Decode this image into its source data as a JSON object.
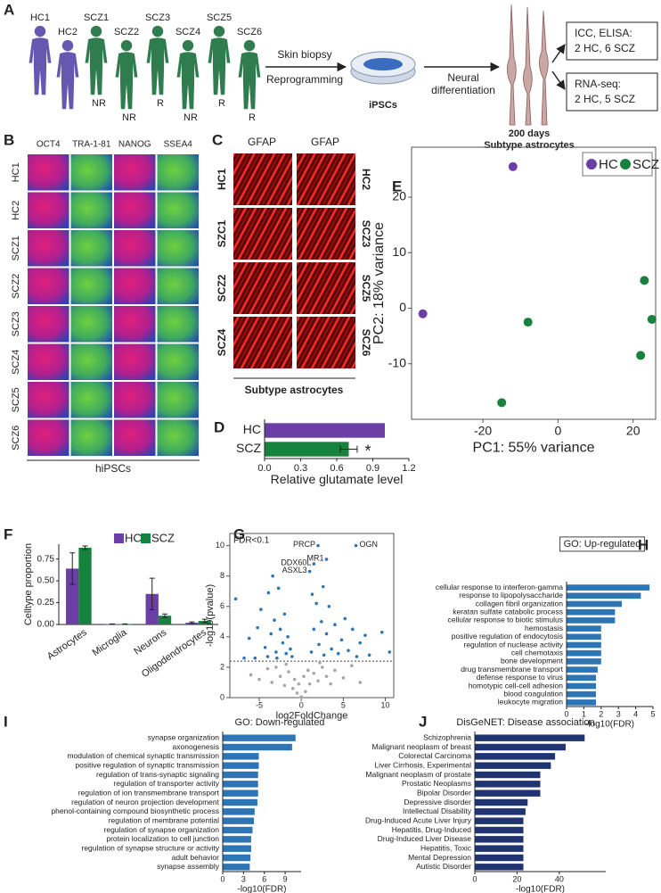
{
  "panel_labels": [
    "A",
    "B",
    "C",
    "D",
    "E",
    "F",
    "G",
    "H",
    "I",
    "J"
  ],
  "diagram": {
    "donors": [
      {
        "label": "HC1",
        "color": "#6b5bb5"
      },
      {
        "label": "HC2",
        "color": "#6b5bb5"
      },
      {
        "label": "SCZ1",
        "color": "#2f7d4f",
        "response": "NR"
      },
      {
        "label": "SCZ2",
        "color": "#2f7d4f",
        "response": "NR"
      },
      {
        "label": "SCZ3",
        "color": "#2f7d4f",
        "response": "R"
      },
      {
        "label": "SCZ4",
        "color": "#2f7d4f",
        "response": "NR"
      },
      {
        "label": "SCZ5",
        "color": "#2f7d4f",
        "response": "R"
      },
      {
        "label": "SCZ6",
        "color": "#2f7d4f",
        "response": "R"
      }
    ],
    "step1_top": "Skin biopsy",
    "step1_bottom": "Reprogramming",
    "dish": "iPSCs",
    "step2": [
      "Neural",
      "differentiation"
    ],
    "result": [
      "200 days",
      "Subtype astrocytes"
    ],
    "boxes": [
      [
        "ICC, ELISA:",
        "2 HC, 6 SCZ"
      ],
      [
        "RNA-seq:",
        "2 HC, 5 SCZ"
      ]
    ]
  },
  "hipsc_panel": {
    "markers": [
      {
        "text": "OCT4",
        "color": "#c0308f"
      },
      {
        "text": "TRA-1-81",
        "color": "#2f7a2f"
      },
      {
        "text": "NANOG",
        "color": "#c0308f"
      },
      {
        "text": "SSEA4",
        "color": "#2f7a2f"
      }
    ],
    "rows": [
      "HC1",
      "HC2",
      "SCZ1",
      "SCZ2",
      "SCZ3",
      "SCZ4",
      "SCZ5",
      "SCZ6"
    ],
    "caption": "hiPSCs"
  },
  "astro_panel": {
    "headers": [
      "GFAP",
      "GFAP"
    ],
    "left_rows": [
      "HC1",
      "SZC1",
      "SCZ2",
      "SCZ4"
    ],
    "right_rows": [
      "HC2",
      "SCZ3",
      "SCZ5",
      "SCZ6"
    ],
    "caption": "Subtype astrocytes"
  },
  "chart_data": [
    {
      "type": "hbar",
      "categories": [
        "HC",
        "SCZ"
      ],
      "values": [
        1.0,
        0.7
      ],
      "errors": [
        null,
        0.07
      ],
      "colors": [
        "#6b3fa6",
        "#17823e"
      ],
      "xlim": [
        0,
        1.2
      ],
      "xticks": [
        {
          "value": 0,
          "label": "0.0"
        },
        0.3,
        0.6,
        0.9,
        1.2
      ],
      "xlabel": "Relative glutamate level",
      "significance": "*"
    },
    {
      "type": "scatter",
      "series": [
        {
          "name": "HC",
          "color": "#6b3fa6",
          "x": [
            -12,
            -36
          ],
          "y": [
            25.5,
            -1
          ]
        },
        {
          "name": "SCZ",
          "color": "#17823e",
          "x": [
            -8,
            -15,
            23,
            25,
            22
          ],
          "y": [
            -2.5,
            -17,
            5,
            -2,
            -8.5
          ]
        }
      ],
      "xlim": [
        -39,
        26
      ],
      "ylim": [
        -20,
        29
      ],
      "xticks": [
        -20,
        0,
        20
      ],
      "yticks": [
        -10,
        0,
        10,
        20
      ],
      "xlabel": "PC1: 55% variance",
      "ylabel": "PC2: 18% variance",
      "legend": "top-right"
    },
    {
      "type": "bar",
      "categories": [
        "Astrocytes",
        "Microglia",
        "Neurons",
        "Oligodendrocytes"
      ],
      "series": [
        {
          "name": "HC",
          "color": "#6b3fa6",
          "values": [
            0.64,
            0.005,
            0.35,
            0.02
          ],
          "errors": [
            0.18,
            0.002,
            0.18,
            0.01
          ]
        },
        {
          "name": "SCZ",
          "color": "#17823e",
          "values": [
            0.88,
            0.005,
            0.1,
            0.04
          ],
          "errors": [
            0.02,
            0.002,
            0.02,
            0.02
          ]
        }
      ],
      "ylim": [
        0,
        0.92
      ],
      "yticks": [
        {
          "value": 0,
          "label": "0.00"
        },
        0.25,
        {
          "value": 0.5,
          "label": "0.50"
        },
        0.75
      ],
      "ylabel": "Celltype proportion",
      "legend": "top"
    },
    {
      "type": "scatter",
      "series": [
        {
          "color": "#2e75b6",
          "x": [
            -7.8,
            -6.2,
            -5.2,
            -4.8,
            -4.3,
            -3.9,
            -3.6,
            -3.2,
            -3.0,
            -2.7,
            -2.5,
            -2.2,
            -2.0,
            -1.8,
            -1.6,
            -1.3,
            -1.1,
            -2.9,
            -4.0,
            -5.5,
            -6.8,
            -3.4,
            1.2,
            1.5,
            1.8,
            2.1,
            2.4,
            2.7,
            3.0,
            3.3,
            3.6,
            4.0,
            4.4,
            4.8,
            5.2,
            5.6,
            6.1,
            6.6,
            7.0,
            7.6,
            8.1,
            10.5,
            9.6,
            2.6,
            1.3
          ],
          "y": [
            6.5,
            3.9,
            4.6,
            5.8,
            3.3,
            6.9,
            4.2,
            5.1,
            3.0,
            7.2,
            4.5,
            3.6,
            5.5,
            2.9,
            4.0,
            3.2,
            2.7,
            2.6,
            2.7,
            2.6,
            2.6,
            8.0,
            3.0,
            4.5,
            6.2,
            3.5,
            5.0,
            2.8,
            4.2,
            6.0,
            3.2,
            4.8,
            2.9,
            3.8,
            5.2,
            3.1,
            4.5,
            2.7,
            3.6,
            4.1,
            2.8,
            3.0,
            4.3,
            7.3,
            6.8
          ]
        },
        {
          "color": "#a6a6a6",
          "x": [
            -6,
            -5,
            -4,
            -3.5,
            -3,
            -2.5,
            -2,
            -1.5,
            -1,
            -0.5,
            0,
            0.5,
            1,
            1.5,
            2,
            2.5,
            3,
            3.5,
            4,
            5,
            6,
            7,
            -0.8,
            0.8,
            -1.8,
            2.2,
            -0.3,
            0.3
          ],
          "y": [
            1.5,
            1.2,
            1.9,
            1.0,
            2.0,
            1.4,
            0.8,
            1.7,
            0.6,
            0.3,
            0.05,
            0.4,
            0.9,
            1.6,
            1.1,
            2.0,
            1.4,
            0.9,
            1.8,
            1.3,
            2.1,
            1.0,
            1.2,
            1.8,
            2.2,
            2.3,
            0.9,
            1.4
          ]
        }
      ],
      "gene_labels": [
        {
          "text": "PRCP",
          "x": 2.0,
          "y": 10.0
        },
        {
          "text": "OGN",
          "x": 6.5,
          "y": 10.0
        },
        {
          "text": "DDX60L",
          "x": 1.5,
          "y": 8.8
        },
        {
          "text": "MR1",
          "x": 3.0,
          "y": 9.1
        },
        {
          "text": "ASXL3",
          "x": 1.0,
          "y": 8.3
        }
      ],
      "threshold": 2.4,
      "annotation": "FDR<0.1",
      "xlim": [
        -8.5,
        11
      ],
      "ylim": [
        0,
        10.8
      ],
      "xticks": [
        -5,
        0,
        5,
        10
      ],
      "yticks": [
        0,
        2,
        4,
        6,
        8,
        10
      ],
      "xlabel": "log2FoldChange",
      "ylabel": "-log10(pvalue)"
    },
    {
      "type": "hbar",
      "title": "GO: Up-regulated",
      "categories": [
        "cellular response to interferon-gamma",
        "response to lipopolysaccharide",
        "collagen fibril organization",
        "keratan sulfate catabolic process",
        "cellular response to biotic stimulus",
        "hemostasis",
        "positive regulation of endocytosis",
        "regulation of nuclease activity",
        "cell chemotaxis",
        "bone development",
        "drug transmembrane transport",
        "defense response to virus",
        "homotypic cell-cell adhesion",
        "blood coagulation",
        "leukocyte migration"
      ],
      "values": [
        4.8,
        4.3,
        3.2,
        2.8,
        2.8,
        2.0,
        2.0,
        2.0,
        2.0,
        2.0,
        1.8,
        1.7,
        1.7,
        1.7,
        1.7
      ],
      "color": "#2e75b6",
      "xlim": [
        0,
        5
      ],
      "xticks": [
        0,
        1,
        2,
        3,
        4,
        5
      ],
      "xlabel": "-log10(FDR)"
    },
    {
      "type": "hbar",
      "title": "GO: Down-regulated",
      "categories": [
        "synapse organization",
        "axonogenesis",
        "modulation of chemical synaptic transmission",
        "positive regulation of synaptic transmission",
        "regulation of trans-synaptic signaling",
        "regulation of transporter activity",
        "regulation of ion transmembrane transport",
        "regulation of neuron projection development",
        "phenol-containing compound biosynthetic process",
        "regulation of membrane potential",
        "regulation of synapse organization",
        "protein localization to cell junction",
        "regulation of synapse structure or activity",
        "adult behavior",
        "synapse assembly"
      ],
      "values": [
        10.5,
        10,
        5.2,
        5.2,
        5.1,
        5.1,
        5.1,
        5,
        4.6,
        4.5,
        4.3,
        4.1,
        4.1,
        4,
        3.9
      ],
      "color": "#2e75b6",
      "xlim": [
        0,
        11.3
      ],
      "xticks": [
        0,
        3,
        6,
        9
      ],
      "xlabel": "-log10(FDR)"
    },
    {
      "type": "hbar",
      "title": "DisGeNET: Disease association",
      "categories": [
        "Schizophrenia",
        "Malignant neoplasm of breast",
        "Colorectal Carcinoma",
        "Liver Cirrhosis, Experimental",
        "Malignant neoplasm of prostate",
        "Prostatic Neoplasms",
        "Bipolar Disorder",
        "Depressive disorder",
        "Intellectual Disability",
        "Drug-Induced Acute Liver Injury",
        "Hepatitis, Drug-Induced",
        "Drug-Induced Liver Disease",
        "Hepatitis, Toxic",
        "Mental Depression",
        "Autistic Disorder"
      ],
      "values": [
        52,
        43,
        38,
        36,
        31,
        31,
        31,
        25,
        24,
        23,
        23,
        23,
        23,
        23,
        23
      ],
      "color": "#1f3470",
      "xlim": [
        0,
        62
      ],
      "xticks": [
        0,
        20,
        40
      ],
      "xlabel": "-log10(FDR)"
    }
  ]
}
